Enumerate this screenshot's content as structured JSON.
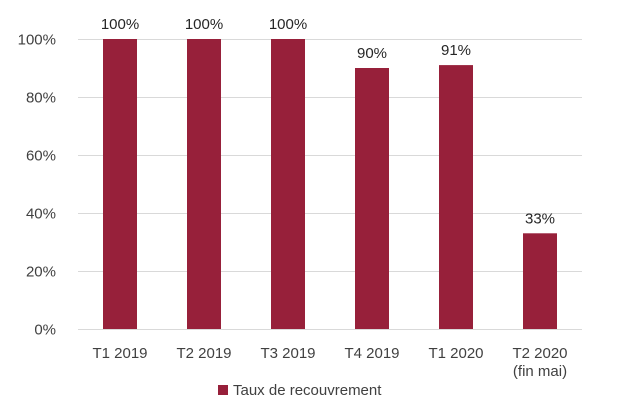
{
  "chart_data": {
    "type": "bar",
    "categories": [
      [
        "T1 2019"
      ],
      [
        "T2 2019"
      ],
      [
        "T3 2019"
      ],
      [
        "T4 2019"
      ],
      [
        "T1 2020"
      ],
      [
        "T2 2020",
        "(fin mai)"
      ]
    ],
    "series": [
      {
        "name": "Taux de recouvrement",
        "values": [
          100,
          100,
          100,
          90,
          91,
          33
        ],
        "data_labels": [
          "100%",
          "100%",
          "100%",
          "90%",
          "91%",
          "33%"
        ],
        "color": "#97203A"
      }
    ],
    "ylim": [
      0,
      100
    ],
    "yticks": [
      "0%",
      "20%",
      "40%",
      "60%",
      "80%",
      "100%"
    ],
    "ytick_values": [
      0,
      20,
      40,
      60,
      80,
      100
    ],
    "grid": true,
    "legend": "bottom-center",
    "colors": {
      "grid": "#D9D9D9",
      "text": "#404040"
    }
  }
}
